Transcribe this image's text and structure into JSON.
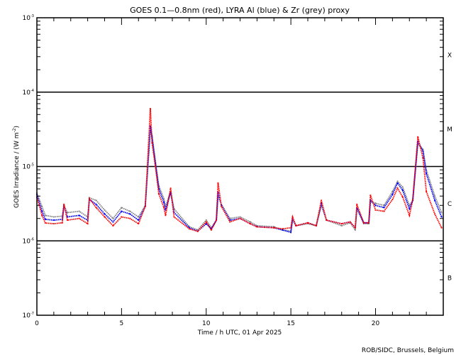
{
  "chart_data": {
    "type": "line",
    "title": "GOES 0.1—0.8nm (red), LYRA Al (blue) & Zr (grey) proxy",
    "xlabel": "Time / h UTC, 01 Apr 2025",
    "ylabel": "GOES Irradiance / (W m",
    "ylabel_sup": "-2",
    "ylabel_close": ")",
    "xlim": [
      0,
      24
    ],
    "ylim": [
      1e-07,
      0.001
    ],
    "yscale": "log",
    "x_ticks": [
      0,
      5,
      10,
      15,
      20
    ],
    "x_tick_labels": [
      "0",
      "5",
      "10",
      "15",
      "20"
    ],
    "y_ticks": [
      0.001,
      0.0001,
      1e-05,
      1e-06,
      1e-07
    ],
    "y_tick_labels": [
      {
        "base": "10",
        "exp": "-3"
      },
      {
        "base": "10",
        "exp": "-4"
      },
      {
        "base": "10",
        "exp": "-5"
      },
      {
        "base": "10",
        "exp": "-6"
      },
      {
        "base": "10",
        "exp": "-7"
      }
    ],
    "reference_lines": [
      0.0001,
      1e-05,
      1e-06
    ],
    "flare_classes": [
      {
        "label": "X",
        "level": 0.000316
      },
      {
        "label": "M",
        "level": 3.16e-05
      },
      {
        "label": "C",
        "level": 3.16e-06
      },
      {
        "label": "B",
        "level": 3.16e-07
      }
    ],
    "x": [
      0,
      0.3,
      0.5,
      1,
      1.5,
      1.6,
      1.8,
      2.5,
      3.0,
      3.1,
      3.5,
      4,
      4.5,
      5,
      5.5,
      6,
      6.4,
      6.7,
      6.8,
      7,
      7.2,
      7.5,
      7.6,
      7.9,
      8.1,
      9,
      9.5,
      10,
      10.3,
      10.6,
      10.7,
      10.9,
      11.4,
      12,
      12.6,
      13,
      14,
      14.5,
      15,
      15.1,
      15.3,
      16,
      16.5,
      16.8,
      17.1,
      18,
      18.5,
      18.8,
      18.9,
      19.3,
      19.6,
      19.7,
      20,
      20.5,
      21,
      21.3,
      21.6,
      22,
      22.2,
      22.5,
      22.8,
      23,
      23.5,
      23.9
    ],
    "value_unit": "1e-6 W m^-2",
    "series": [
      {
        "name": "GOES 0.1-0.8nm",
        "color": "#ff0000",
        "values": [
          3.9,
          2.2,
          1.74,
          1.7,
          1.75,
          3.1,
          1.9,
          2.0,
          1.7,
          3.7,
          2.8,
          2.1,
          1.6,
          2.1,
          2.0,
          1.7,
          2.9,
          60,
          21,
          10,
          4.3,
          2.8,
          2.2,
          5.1,
          2.1,
          1.45,
          1.34,
          1.8,
          1.4,
          1.9,
          6.0,
          2.9,
          1.8,
          2.0,
          1.7,
          1.54,
          1.5,
          1.45,
          1.5,
          2.1,
          1.6,
          1.75,
          1.6,
          3.5,
          1.9,
          1.7,
          1.8,
          1.5,
          3.1,
          1.75,
          1.75,
          4.1,
          2.6,
          2.5,
          3.6,
          5.1,
          3.9,
          2.2,
          3.6,
          25,
          13,
          4.6,
          2.3,
          1.5
        ]
      },
      {
        "name": "LYRA Al proxy",
        "color": "#0000ff",
        "values": [
          4.2,
          2.5,
          1.95,
          1.9,
          1.95,
          3.0,
          2.1,
          2.2,
          1.9,
          3.6,
          3.1,
          2.3,
          1.8,
          2.5,
          2.3,
          1.9,
          2.9,
          35,
          25,
          11,
          5.0,
          3.3,
          2.6,
          4.5,
          2.4,
          1.5,
          1.35,
          1.7,
          1.45,
          1.9,
          4.5,
          3.0,
          1.9,
          2.0,
          1.7,
          1.55,
          1.5,
          1.4,
          1.3,
          2.0,
          1.6,
          1.75,
          1.6,
          3.2,
          1.9,
          1.7,
          1.8,
          1.5,
          2.8,
          1.75,
          1.75,
          3.5,
          3.0,
          2.8,
          4.2,
          6.0,
          4.8,
          2.7,
          3.5,
          22,
          16,
          8,
          3.5,
          2.1
        ]
      },
      {
        "name": "LYRA Zr proxy",
        "color": "#808080",
        "values": [
          4.4,
          2.9,
          2.2,
          2.1,
          2.15,
          3.0,
          2.4,
          2.5,
          2.1,
          3.8,
          3.5,
          2.6,
          2.0,
          2.8,
          2.5,
          2.1,
          3.0,
          30,
          26,
          12,
          5.5,
          3.7,
          2.9,
          4.6,
          2.7,
          1.55,
          1.4,
          1.9,
          1.5,
          1.9,
          4.0,
          3.1,
          2.0,
          2.1,
          1.8,
          1.6,
          1.55,
          1.4,
          1.35,
          1.9,
          1.6,
          1.7,
          1.6,
          3.0,
          1.9,
          1.6,
          1.75,
          1.4,
          2.7,
          1.7,
          1.7,
          3.4,
          3.2,
          3.0,
          4.6,
          6.3,
          5.3,
          3.0,
          3.5,
          20,
          17,
          9,
          4.0,
          2.4
        ]
      }
    ],
    "grid": false
  },
  "credit": "ROB/SIDC, Brussels, Belgium"
}
